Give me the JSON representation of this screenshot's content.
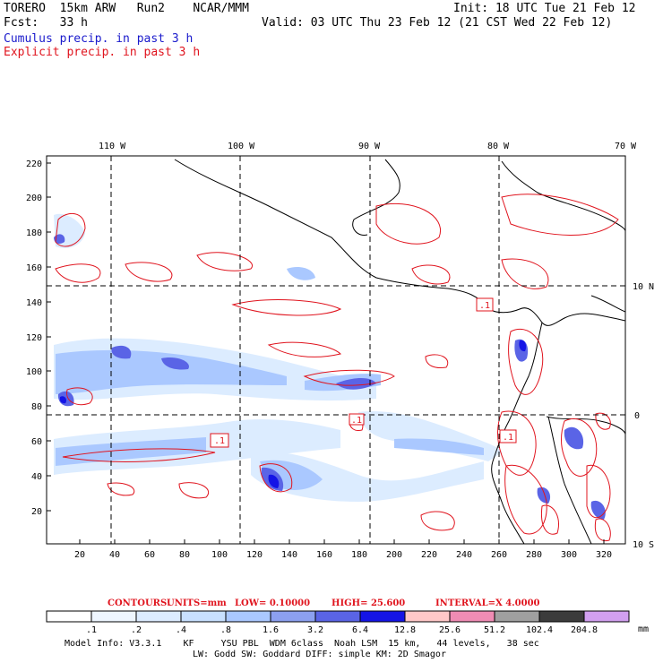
{
  "header": {
    "model_line": "TORERO  15km ARW   Run2    NCAR/MMM",
    "init": "Init: 18 UTC Tue 21 Feb 12",
    "fcst": "Fcst:   33 h",
    "valid": "Valid: 03 UTC Thu 23 Feb 12 (21 CST Wed 22 Feb 12)",
    "field1": "Cumulus precip. in past 3 h",
    "field2": "Explicit precip. in past 3 h"
  },
  "colors": {
    "field1": "#1a1acc",
    "field2": "#e0141e",
    "contour": "#e0141e"
  },
  "map": {
    "lon_labels": [
      "110 W",
      "100 W",
      "90 W",
      "80 W",
      "70 W"
    ],
    "lat_labels": [
      "10 N",
      "0",
      "10 S"
    ],
    "y_ticks": [
      "220",
      "200",
      "180",
      "160",
      "140",
      "120",
      "100",
      "80",
      "60",
      "40",
      "20"
    ],
    "x_ticks": [
      "20",
      "40",
      "60",
      "80",
      "100",
      "120",
      "140",
      "160",
      "180",
      "200",
      "220",
      "240",
      "260",
      "280",
      "300",
      "320"
    ],
    "contour_boxes": [
      ".1",
      ".1",
      ".1",
      ".1"
    ]
  },
  "contours_info": {
    "label": "CONTOURS:",
    "units": "UNITS=mm",
    "low": "LOW= 0.10000",
    "high": "HIGH=  25.600",
    "interval": "INTERVAL=X  4.0000"
  },
  "colorbar": {
    "labels": [
      ".1",
      ".2",
      ".4",
      ".8",
      "1.6",
      "3.2",
      "6.4",
      "12.8",
      "25.6",
      "51.2",
      "102.4",
      "204.8"
    ],
    "unit": "mm",
    "colors": [
      "#ffffff",
      "#eef6ff",
      "#dcecff",
      "#c8e0ff",
      "#aac8ff",
      "#8ca0f0",
      "#5a64e6",
      "#1414e6",
      "#ffc8c8",
      "#f08cb4",
      "#a0a0a0",
      "#3c3c3c",
      "#d2a0f0"
    ]
  },
  "footer": {
    "line1": "Model Info: V3.3.1    KF     YSU PBL  WDM 6class  Noah LSM  15 km,   44 levels,   38 sec",
    "line2": "LW: Godd SW: Goddard DIFF: simple KM: 2D Smagor"
  }
}
